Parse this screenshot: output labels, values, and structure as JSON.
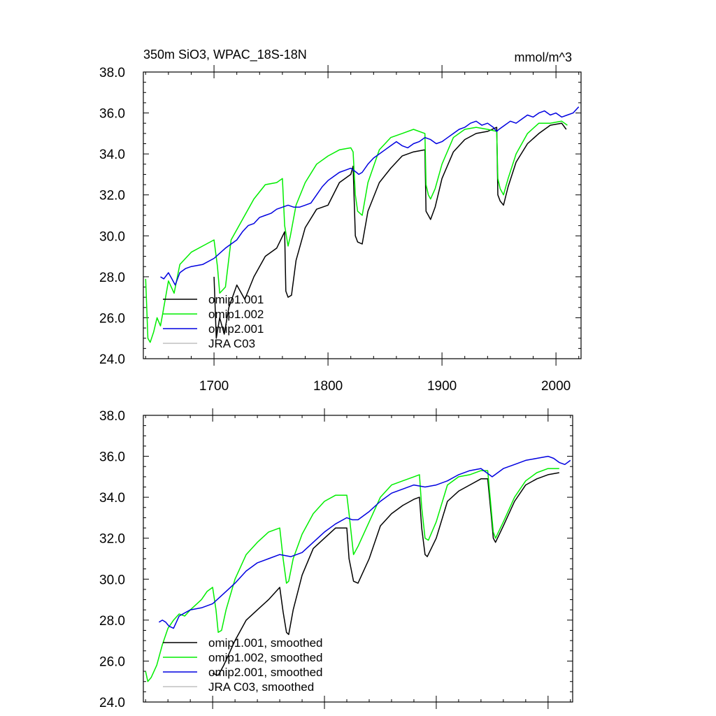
{
  "colors": {
    "omip1_001": "#000000",
    "omip1_002": "#00ee00",
    "omip2_001": "#0000e0",
    "jra_c03": "#c0c0c0"
  },
  "chart_data": [
    {
      "type": "line",
      "title": "350m SiO3, WPAC_18S-18N",
      "units_label": "mmol/m^3",
      "xlim": [
        1638,
        2022
      ],
      "ylim": [
        24.0,
        38.0
      ],
      "x_ticks": [
        1700,
        1800,
        1900,
        2000
      ],
      "x_tick_labels": [
        "1700",
        "1800",
        "1900",
        "2000"
      ],
      "y_ticks": [
        24.0,
        26.0,
        28.0,
        30.0,
        32.0,
        34.0,
        36.0,
        38.0
      ],
      "y_tick_labels": [
        "24.0",
        "26.0",
        "28.0",
        "30.0",
        "32.0",
        "34.0",
        "36.0",
        "38.0"
      ],
      "legend": {
        "placement": "bottom-left",
        "entries": [
          "omip1.001",
          "omip1.002",
          "omip2.001",
          "JRA C03"
        ]
      },
      "series": [
        {
          "name": "omip1.001",
          "color_key": "omip1_001",
          "x": [
            1700,
            1702,
            1705,
            1709,
            1713,
            1720,
            1727,
            1735,
            1745,
            1755,
            1762,
            1763,
            1765,
            1768,
            1772,
            1780,
            1790,
            1800,
            1810,
            1820,
            1822,
            1824,
            1826,
            1830,
            1835,
            1845,
            1855,
            1865,
            1875,
            1885,
            1886,
            1888,
            1890,
            1894,
            1900,
            1910,
            1920,
            1930,
            1940,
            1948,
            1949,
            1951,
            1954,
            1958,
            1965,
            1975,
            1985,
            1995,
            2005,
            2009
          ],
          "y": [
            28.0,
            25.0,
            26.0,
            25.2,
            26.5,
            27.6,
            26.9,
            28.0,
            29.0,
            29.4,
            30.2,
            27.3,
            27.0,
            27.1,
            28.8,
            30.4,
            31.3,
            31.5,
            32.6,
            33.0,
            33.4,
            30.0,
            29.7,
            29.6,
            31.2,
            32.6,
            33.3,
            33.9,
            34.1,
            34.2,
            31.2,
            31.0,
            30.8,
            31.4,
            32.8,
            34.1,
            34.7,
            35.0,
            35.1,
            35.3,
            32.0,
            31.7,
            31.5,
            32.4,
            33.6,
            34.5,
            35.0,
            35.4,
            35.5,
            35.2
          ]
        },
        {
          "name": "omip1.002",
          "color_key": "omip1_002",
          "x": [
            1640,
            1642,
            1644,
            1647,
            1650,
            1653,
            1655,
            1660,
            1665,
            1670,
            1680,
            1690,
            1700,
            1703,
            1705,
            1710,
            1715,
            1725,
            1735,
            1745,
            1755,
            1760,
            1762,
            1765,
            1767,
            1772,
            1780,
            1790,
            1800,
            1810,
            1820,
            1822,
            1824,
            1826,
            1830,
            1835,
            1845,
            1855,
            1865,
            1875,
            1885,
            1886,
            1888,
            1890,
            1894,
            1900,
            1910,
            1920,
            1930,
            1940,
            1948,
            1949,
            1951,
            1954,
            1958,
            1965,
            1975,
            1985,
            1995,
            2005,
            2010
          ],
          "y": [
            27.9,
            25.0,
            24.8,
            25.3,
            26.0,
            25.6,
            26.2,
            27.8,
            27.2,
            28.6,
            29.2,
            29.5,
            29.8,
            28.5,
            27.2,
            27.5,
            29.8,
            30.8,
            31.8,
            32.5,
            32.6,
            32.8,
            30.5,
            29.5,
            30.0,
            31.5,
            32.6,
            33.5,
            33.9,
            34.2,
            34.3,
            34.1,
            32.0,
            31.2,
            31.0,
            32.6,
            34.2,
            34.8,
            35.0,
            35.2,
            35.0,
            32.5,
            32.0,
            31.8,
            32.3,
            33.5,
            34.8,
            35.2,
            35.3,
            35.2,
            35.1,
            32.8,
            32.3,
            32.0,
            32.8,
            34.0,
            35.0,
            35.5,
            35.5,
            35.6,
            35.4
          ]
        },
        {
          "name": "omip2.001",
          "color_key": "omip2_001",
          "x": [
            1653,
            1656,
            1660,
            1663,
            1666,
            1670,
            1675,
            1680,
            1690,
            1700,
            1710,
            1715,
            1720,
            1725,
            1730,
            1735,
            1740,
            1745,
            1750,
            1755,
            1760,
            1765,
            1770,
            1775,
            1780,
            1785,
            1790,
            1795,
            1800,
            1805,
            1810,
            1815,
            1820,
            1825,
            1827,
            1830,
            1835,
            1840,
            1845,
            1850,
            1855,
            1860,
            1865,
            1870,
            1875,
            1880,
            1885,
            1890,
            1895,
            1900,
            1905,
            1910,
            1915,
            1920,
            1925,
            1930,
            1935,
            1940,
            1945,
            1948,
            1950,
            1955,
            1960,
            1965,
            1970,
            1975,
            1980,
            1985,
            1990,
            1995,
            2000,
            2005,
            2010,
            2015,
            2020
          ],
          "y": [
            28.0,
            27.9,
            28.2,
            27.9,
            27.6,
            28.2,
            28.4,
            28.5,
            28.6,
            28.9,
            29.4,
            29.6,
            29.8,
            30.2,
            30.5,
            30.6,
            30.9,
            31.0,
            31.1,
            31.3,
            31.4,
            31.5,
            31.4,
            31.4,
            31.5,
            31.6,
            32.0,
            32.4,
            32.7,
            32.9,
            33.1,
            33.2,
            33.3,
            33.1,
            33.0,
            33.1,
            33.5,
            33.8,
            34.0,
            34.2,
            34.4,
            34.6,
            34.4,
            34.3,
            34.5,
            34.6,
            34.8,
            34.7,
            34.5,
            34.6,
            34.8,
            35.0,
            35.2,
            35.3,
            35.5,
            35.6,
            35.4,
            35.5,
            35.3,
            35.1,
            35.2,
            35.4,
            35.6,
            35.5,
            35.7,
            35.9,
            35.8,
            36.0,
            36.1,
            35.9,
            36.0,
            35.8,
            35.9,
            36.0,
            36.3
          ]
        }
      ]
    },
    {
      "type": "line",
      "xlim": [
        1638,
        2022
      ],
      "ylim": [
        24.0,
        38.0
      ],
      "y_ticks": [
        24.0,
        26.0,
        28.0,
        30.0,
        32.0,
        34.0,
        36.0,
        38.0
      ],
      "y_tick_labels": [
        "24.0",
        "26.0",
        "28.0",
        "30.0",
        "32.0",
        "34.0",
        "36.0",
        "38.0"
      ],
      "legend": {
        "placement": "bottom-left",
        "entries": [
          "omip1.001, smoothed",
          "omip1.002, smoothed",
          "omip2.001, smoothed",
          "JRA C03, smoothed"
        ]
      },
      "series": [
        {
          "name": "omip1.001, smoothed",
          "color_key": "omip1_001",
          "x": [
            1700,
            1705,
            1710,
            1715,
            1720,
            1730,
            1740,
            1750,
            1760,
            1763,
            1766,
            1768,
            1772,
            1780,
            1790,
            1800,
            1810,
            1820,
            1822,
            1826,
            1830,
            1840,
            1850,
            1860,
            1870,
            1880,
            1885,
            1887,
            1890,
            1892,
            1900,
            1910,
            1920,
            1930,
            1940,
            1946,
            1949,
            1951,
            1953,
            1960,
            1970,
            1980,
            1990,
            2000,
            2010
          ],
          "y": [
            25.4,
            25.3,
            25.8,
            26.4,
            27.0,
            28.0,
            28.5,
            29.0,
            29.6,
            28.4,
            27.4,
            27.3,
            28.5,
            30.2,
            31.5,
            32.0,
            32.5,
            32.5,
            31.0,
            29.9,
            29.8,
            31.0,
            32.6,
            33.2,
            33.6,
            33.9,
            34.0,
            32.5,
            31.2,
            31.1,
            32.0,
            33.8,
            34.3,
            34.6,
            34.9,
            34.9,
            33.2,
            32.0,
            31.8,
            32.6,
            33.8,
            34.6,
            34.9,
            35.1,
            35.2
          ]
        },
        {
          "name": "omip1.002, smoothed",
          "color_key": "omip1_002",
          "x": [
            1640,
            1642,
            1645,
            1650,
            1655,
            1660,
            1665,
            1670,
            1675,
            1680,
            1690,
            1695,
            1700,
            1703,
            1705,
            1708,
            1712,
            1720,
            1730,
            1740,
            1750,
            1760,
            1763,
            1766,
            1768,
            1772,
            1780,
            1790,
            1800,
            1810,
            1820,
            1822,
            1826,
            1830,
            1840,
            1850,
            1860,
            1870,
            1880,
            1885,
            1887,
            1890,
            1893,
            1900,
            1910,
            1920,
            1930,
            1940,
            1946,
            1949,
            1951,
            1953,
            1960,
            1970,
            1980,
            1990,
            2000,
            2010
          ],
          "y": [
            25.5,
            25.0,
            25.2,
            25.8,
            26.8,
            27.6,
            28.0,
            28.3,
            28.2,
            28.5,
            29.0,
            29.4,
            29.6,
            28.5,
            27.4,
            27.5,
            28.5,
            30.0,
            31.2,
            31.8,
            32.3,
            32.5,
            31.0,
            29.8,
            29.9,
            31.0,
            32.2,
            33.2,
            33.8,
            34.1,
            34.1,
            33.2,
            31.2,
            31.6,
            32.8,
            34.0,
            34.6,
            34.8,
            35.0,
            35.1,
            33.5,
            32.0,
            31.9,
            32.8,
            34.6,
            35.0,
            35.1,
            35.3,
            35.3,
            33.5,
            32.3,
            32.0,
            32.8,
            34.0,
            34.8,
            35.2,
            35.4,
            35.4
          ]
        },
        {
          "name": "omip2.001, smoothed",
          "color_key": "omip2_001",
          "x": [
            1652,
            1655,
            1658,
            1661,
            1665,
            1670,
            1680,
            1690,
            1700,
            1710,
            1720,
            1730,
            1740,
            1750,
            1760,
            1770,
            1780,
            1790,
            1800,
            1810,
            1820,
            1825,
            1830,
            1840,
            1850,
            1860,
            1870,
            1880,
            1890,
            1900,
            1910,
            1920,
            1930,
            1940,
            1945,
            1950,
            1955,
            1960,
            1970,
            1980,
            1990,
            2000,
            2005,
            2010,
            2015,
            2020
          ],
          "y": [
            27.9,
            28.0,
            27.9,
            27.7,
            27.6,
            28.2,
            28.5,
            28.6,
            28.8,
            29.3,
            29.8,
            30.4,
            30.8,
            31.0,
            31.2,
            31.1,
            31.3,
            31.8,
            32.3,
            32.7,
            33.0,
            32.9,
            32.9,
            33.3,
            33.8,
            34.2,
            34.4,
            34.6,
            34.5,
            34.6,
            34.8,
            35.1,
            35.3,
            35.4,
            35.2,
            35.0,
            35.2,
            35.4,
            35.6,
            35.8,
            35.9,
            36.0,
            35.9,
            35.7,
            35.6,
            35.8
          ]
        }
      ]
    }
  ]
}
